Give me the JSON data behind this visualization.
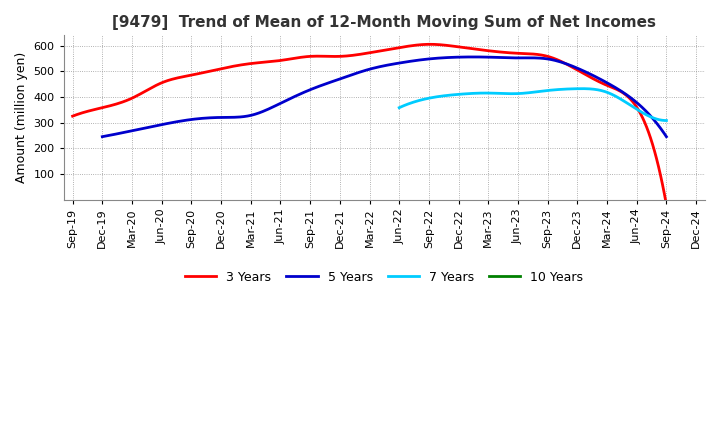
{
  "title": "[9479]  Trend of Mean of 12-Month Moving Sum of Net Incomes",
  "ylabel": "Amount (million yen)",
  "background_color": "#ffffff",
  "plot_bg_color": "#ffffff",
  "grid_color": "#aaaaaa",
  "x_labels": [
    "Sep-19",
    "Dec-19",
    "Mar-20",
    "Jun-20",
    "Sep-20",
    "Dec-20",
    "Mar-21",
    "Jun-21",
    "Sep-21",
    "Dec-21",
    "Mar-22",
    "Jun-22",
    "Sep-22",
    "Dec-22",
    "Mar-23",
    "Jun-23",
    "Sep-23",
    "Dec-23",
    "Mar-24",
    "Jun-24",
    "Sep-24",
    "Dec-24"
  ],
  "series": {
    "3 Years": {
      "color": "#ff0000",
      "data": [
        325,
        358,
        395,
        455,
        485,
        510,
        530,
        542,
        558,
        558,
        572,
        592,
        605,
        595,
        580,
        570,
        558,
        505,
        445,
        360,
        -20,
        null
      ]
    },
    "5 Years": {
      "color": "#0000cc",
      "data": [
        null,
        245,
        268,
        292,
        312,
        320,
        328,
        375,
        428,
        470,
        508,
        532,
        548,
        555,
        555,
        552,
        548,
        512,
        455,
        378,
        245,
        null
      ]
    },
    "7 Years": {
      "color": "#00ccff",
      "data": [
        null,
        null,
        null,
        null,
        null,
        null,
        null,
        null,
        null,
        null,
        null,
        358,
        395,
        410,
        415,
        413,
        425,
        432,
        418,
        352,
        308,
        null
      ]
    },
    "10 Years": {
      "color": "#008000",
      "data": [
        null,
        null,
        null,
        null,
        null,
        null,
        null,
        null,
        null,
        null,
        null,
        null,
        null,
        null,
        null,
        null,
        null,
        null,
        null,
        null,
        null,
        null
      ]
    }
  },
  "ylim": [
    0,
    640
  ],
  "yticks": [
    100,
    200,
    300,
    400,
    500,
    600
  ],
  "title_fontsize": 11,
  "label_fontsize": 9,
  "tick_fontsize": 8
}
